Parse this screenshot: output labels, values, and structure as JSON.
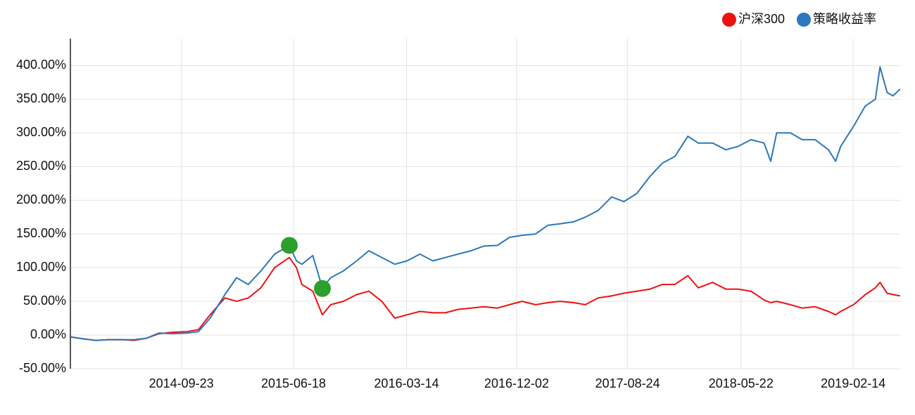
{
  "chart_data": {
    "type": "line",
    "x": [
      "2014-01-02",
      "2014-02-03",
      "2014-03-03",
      "2014-04-01",
      "2014-05-05",
      "2014-06-03",
      "2014-07-01",
      "2014-08-01",
      "2014-09-01",
      "2014-10-08",
      "2014-11-03",
      "2014-12-01",
      "2015-01-05",
      "2015-02-02",
      "2015-03-02",
      "2015-04-01",
      "2015-05-04",
      "2015-06-08",
      "2015-06-25",
      "2015-07-08",
      "2015-08-03",
      "2015-08-26",
      "2015-09-15",
      "2015-10-15",
      "2015-11-16",
      "2015-12-15",
      "2016-01-15",
      "2016-02-15",
      "2016-03-15",
      "2016-04-15",
      "2016-05-16",
      "2016-06-15",
      "2016-07-15",
      "2016-08-15",
      "2016-09-15",
      "2016-10-17",
      "2016-11-15",
      "2016-12-15",
      "2017-01-16",
      "2017-02-15",
      "2017-03-15",
      "2017-04-17",
      "2017-05-15",
      "2017-06-15",
      "2017-07-17",
      "2017-08-15",
      "2017-09-15",
      "2017-10-16",
      "2017-11-15",
      "2017-12-15",
      "2018-01-15",
      "2018-02-09",
      "2018-03-15",
      "2018-04-16",
      "2018-05-15",
      "2018-06-15",
      "2018-07-16",
      "2018-08-01",
      "2018-08-15",
      "2018-09-17",
      "2018-10-15",
      "2018-11-15",
      "2018-12-17",
      "2019-01-03",
      "2019-01-15",
      "2019-02-15",
      "2019-03-15",
      "2019-04-08",
      "2019-04-19",
      "2019-05-06",
      "2019-05-20",
      "2019-06-06"
    ],
    "series": [
      {
        "name": "沪深300",
        "color": "#ee1111",
        "values": [
          -3,
          -6,
          -8,
          -7,
          -7,
          -8,
          -5,
          2,
          4,
          5,
          8,
          30,
          55,
          50,
          55,
          70,
          100,
          115,
          100,
          75,
          65,
          30,
          45,
          50,
          60,
          65,
          50,
          25,
          30,
          35,
          33,
          33,
          38,
          40,
          42,
          40,
          45,
          50,
          45,
          48,
          50,
          48,
          45,
          55,
          58,
          62,
          65,
          68,
          75,
          75,
          88,
          70,
          78,
          68,
          68,
          65,
          52,
          48,
          50,
          45,
          40,
          42,
          35,
          30,
          35,
          45,
          60,
          70,
          78,
          62,
          60,
          58
        ]
      },
      {
        "name": "策略收益率",
        "color": "#2b78bd",
        "values": [
          -3,
          -6,
          -8,
          -7,
          -7,
          -7,
          -5,
          3,
          2,
          3,
          5,
          25,
          60,
          85,
          75,
          95,
          120,
          133,
          110,
          105,
          118,
          70,
          85,
          95,
          110,
          125,
          115,
          105,
          110,
          120,
          110,
          115,
          120,
          125,
          132,
          133,
          145,
          148,
          150,
          163,
          165,
          168,
          175,
          185,
          205,
          198,
          210,
          235,
          255,
          265,
          295,
          285,
          285,
          275,
          280,
          290,
          285,
          258,
          300,
          300,
          290,
          290,
          275,
          258,
          280,
          310,
          340,
          350,
          398,
          360,
          355,
          365
        ]
      }
    ],
    "markers": {
      "color": "#2ca02c",
      "x": [
        "2015-06-08",
        "2015-08-26"
      ],
      "values": [
        133,
        69
      ]
    },
    "xlim": [
      "2014-01-01",
      "2019-06-08"
    ],
    "xticks": [
      "2014-09-23",
      "2015-06-18",
      "2016-03-14",
      "2016-12-02",
      "2017-08-24",
      "2018-05-22",
      "2019-02-14"
    ],
    "ylim": [
      -50,
      440
    ],
    "yticks": [
      {
        "value": -50,
        "label": "-50.00%"
      },
      {
        "value": 0,
        "label": "0.00%"
      },
      {
        "value": 50,
        "label": "50.00%"
      },
      {
        "value": 100,
        "label": "100.00%"
      },
      {
        "value": 150,
        "label": "150.00%"
      },
      {
        "value": 200,
        "label": "200.00%"
      },
      {
        "value": 250,
        "label": "250.00%"
      },
      {
        "value": 300,
        "label": "300.00%"
      },
      {
        "value": 350,
        "label": "350.00%"
      },
      {
        "value": 400,
        "label": "400.00%"
      }
    ],
    "grid": true,
    "legend": "top-right"
  }
}
